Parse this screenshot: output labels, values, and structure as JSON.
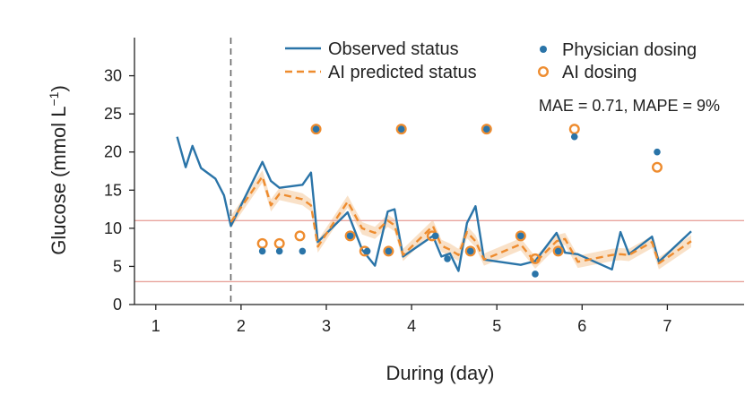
{
  "chart_data": {
    "type": "line",
    "xlabel": "During (day)",
    "ylabel": "Glucose (mmol L",
    "ylabel_sup": "−1",
    "ylabel_close": ")",
    "xlim": [
      0.75,
      7.9
    ],
    "ylim": [
      0,
      35
    ],
    "xticks": [
      1,
      2,
      3,
      4,
      5,
      6,
      7
    ],
    "yticks": [
      0,
      5,
      10,
      15,
      20,
      25,
      30
    ],
    "annotation": "MAE = 0.71, MAPE = 9%",
    "reference_lines": [
      11,
      3
    ],
    "split_day": 1.88,
    "colors": {
      "observed": "#2a74a8",
      "predicted": "#ee8c2f",
      "band": "#f7d4b0",
      "reference": "#e8a49d",
      "split": "#666666",
      "axis": "#222222"
    },
    "legend": {
      "observed": "Observed status",
      "predicted": "AI predicted status",
      "physician": "Physician dosing",
      "ai_dosing": "AI dosing"
    },
    "series": [
      {
        "name": "Observed status",
        "points": [
          [
            1.25,
            22
          ],
          [
            1.35,
            18
          ],
          [
            1.43,
            20.8
          ],
          [
            1.53,
            17.9
          ],
          [
            1.7,
            16.5
          ],
          [
            1.8,
            14.3
          ],
          [
            1.88,
            10.3
          ],
          [
            2.25,
            18.7
          ],
          [
            2.35,
            16.2
          ],
          [
            2.45,
            15.3
          ],
          [
            2.72,
            15.7
          ],
          [
            2.82,
            17.3
          ],
          [
            2.9,
            8.2
          ],
          [
            3.25,
            12.1
          ],
          [
            3.42,
            7.2
          ],
          [
            3.57,
            5.1
          ],
          [
            3.72,
            12.2
          ],
          [
            3.8,
            12.5
          ],
          [
            3.9,
            6.3
          ],
          [
            4.25,
            9
          ],
          [
            4.35,
            6.3
          ],
          [
            4.45,
            6.7
          ],
          [
            4.55,
            4.4
          ],
          [
            4.65,
            10.7
          ],
          [
            4.75,
            12.9
          ],
          [
            4.85,
            5.9
          ],
          [
            5.28,
            5.2
          ],
          [
            5.45,
            5.7
          ],
          [
            5.7,
            9.4
          ],
          [
            5.8,
            6.8
          ],
          [
            5.95,
            6.6
          ],
          [
            6.35,
            4.6
          ],
          [
            6.45,
            9.5
          ],
          [
            6.55,
            6.6
          ],
          [
            6.82,
            8.9
          ],
          [
            6.9,
            5.6
          ],
          [
            7.28,
            9.6
          ]
        ]
      },
      {
        "name": "AI predicted status",
        "points": [
          [
            1.88,
            10.8
          ],
          [
            2.25,
            16.8
          ],
          [
            2.35,
            13
          ],
          [
            2.45,
            14.5
          ],
          [
            2.72,
            13.8
          ],
          [
            2.82,
            13
          ],
          [
            2.9,
            7.6
          ],
          [
            3.25,
            13.5
          ],
          [
            3.42,
            10
          ],
          [
            3.57,
            9.4
          ],
          [
            3.72,
            11
          ],
          [
            3.8,
            10.4
          ],
          [
            3.9,
            6.5
          ],
          [
            4.25,
            10.3
          ],
          [
            4.35,
            7.7
          ],
          [
            4.45,
            7.2
          ],
          [
            4.55,
            6.5
          ],
          [
            4.65,
            9.5
          ],
          [
            4.75,
            8.3
          ],
          [
            4.85,
            5.9
          ],
          [
            5.28,
            7.9
          ],
          [
            5.45,
            5.5
          ],
          [
            5.7,
            8.3
          ],
          [
            5.8,
            8.6
          ],
          [
            5.95,
            5.6
          ],
          [
            6.35,
            6.5
          ],
          [
            6.45,
            6.6
          ],
          [
            6.55,
            6.5
          ],
          [
            6.82,
            8.2
          ],
          [
            6.9,
            5.4
          ],
          [
            7.28,
            8.3
          ]
        ]
      }
    ],
    "physician_dosing": [
      [
        2.25,
        7
      ],
      [
        2.45,
        7
      ],
      [
        2.72,
        7
      ],
      [
        2.88,
        23
      ],
      [
        3.28,
        9
      ],
      [
        3.48,
        7
      ],
      [
        3.73,
        7
      ],
      [
        3.88,
        23
      ],
      [
        4.28,
        9
      ],
      [
        4.42,
        6
      ],
      [
        4.69,
        7
      ],
      [
        4.88,
        23
      ],
      [
        5.28,
        9
      ],
      [
        5.45,
        4
      ],
      [
        5.72,
        7
      ],
      [
        5.91,
        22
      ],
      [
        6.88,
        20
      ]
    ],
    "ai_dosing": [
      [
        2.25,
        8
      ],
      [
        2.45,
        8
      ],
      [
        2.69,
        9
      ],
      [
        2.88,
        23
      ],
      [
        3.28,
        9
      ],
      [
        3.45,
        7
      ],
      [
        3.73,
        7
      ],
      [
        3.88,
        23
      ],
      [
        4.24,
        9
      ],
      [
        4.69,
        7
      ],
      [
        4.88,
        23
      ],
      [
        5.28,
        9
      ],
      [
        5.45,
        6
      ],
      [
        5.72,
        7
      ],
      [
        5.91,
        23
      ],
      [
        6.88,
        18
      ]
    ]
  }
}
